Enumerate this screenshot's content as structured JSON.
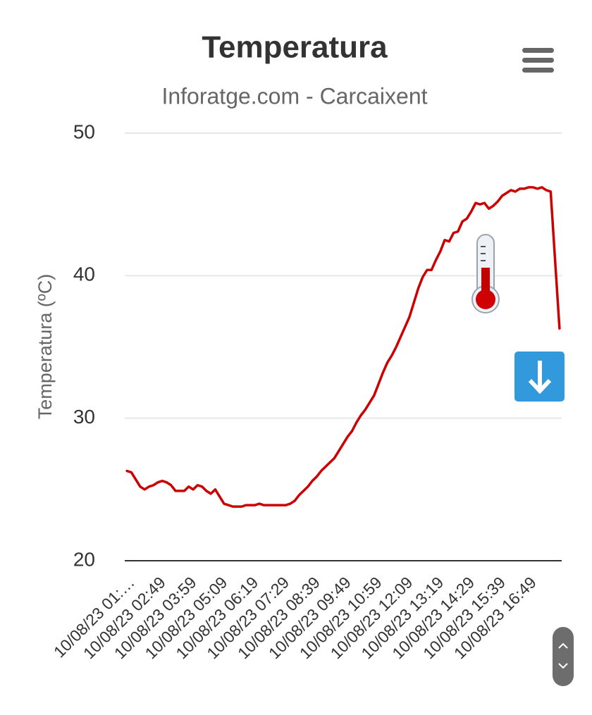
{
  "chart_data": {
    "type": "line",
    "title": "Temperatura",
    "subtitle": "Inforatge.com - Carcaixent",
    "y_label": "Temperatura (ºC)",
    "color": "#cc0000",
    "ylim": [
      20,
      50
    ],
    "yticks": [
      20,
      30,
      40,
      50
    ],
    "grid": true,
    "categories": [
      "10/08/23 01:…",
      null,
      null,
      null,
      null,
      null,
      null,
      "10/08/23 02:49",
      null,
      null,
      null,
      null,
      null,
      null,
      "10/08/23 03:59",
      null,
      null,
      null,
      null,
      null,
      null,
      "10/08/23 05:09",
      null,
      null,
      null,
      null,
      null,
      null,
      "10/08/23 06:19",
      null,
      null,
      null,
      null,
      null,
      null,
      "10/08/23 07:29",
      null,
      null,
      null,
      null,
      null,
      null,
      "10/08/23 08:39",
      null,
      null,
      null,
      null,
      null,
      null,
      "10/08/23 09:49",
      null,
      null,
      null,
      null,
      null,
      null,
      "10/08/23 10:59",
      null,
      null,
      null,
      null,
      null,
      null,
      "10/08/23 12:09",
      null,
      null,
      null,
      null,
      null,
      null,
      "10/08/23 13:19",
      null,
      null,
      null,
      null,
      null,
      null,
      "10/08/23 14:29",
      null,
      null,
      null,
      null,
      null,
      null,
      "10/08/23 15:39",
      null,
      null,
      null,
      null,
      null,
      null,
      "10/08/23 16:49",
      null,
      null,
      null,
      null,
      null,
      null,
      null
    ],
    "values": [
      26.3,
      26.2,
      25.7,
      25.2,
      25.0,
      25.2,
      25.3,
      25.5,
      25.6,
      25.5,
      25.3,
      24.9,
      24.9,
      24.9,
      25.2,
      25.0,
      25.3,
      25.2,
      24.9,
      24.7,
      25.0,
      24.5,
      24.0,
      23.9,
      23.8,
      23.8,
      23.8,
      23.9,
      23.9,
      23.9,
      24.0,
      23.9,
      23.9,
      23.9,
      23.9,
      23.9,
      23.9,
      24.0,
      24.2,
      24.6,
      24.9,
      25.2,
      25.6,
      25.9,
      26.3,
      26.6,
      26.9,
      27.2,
      27.7,
      28.2,
      28.7,
      29.1,
      29.7,
      30.2,
      30.6,
      31.1,
      31.6,
      32.4,
      33.2,
      33.9,
      34.4,
      35.0,
      35.7,
      36.4,
      37.1,
      38.1,
      39.1,
      39.9,
      40.4,
      40.4,
      41.1,
      41.7,
      42.5,
      42.4,
      43.0,
      43.1,
      43.8,
      44.0,
      44.5,
      45.1,
      45.0,
      45.1,
      44.7,
      44.9,
      45.2,
      45.6,
      45.8,
      46.0,
      45.9,
      46.1,
      46.1,
      46.2,
      46.2,
      46.1,
      46.2,
      46.0,
      45.9,
      41.1,
      36.3
    ]
  }
}
